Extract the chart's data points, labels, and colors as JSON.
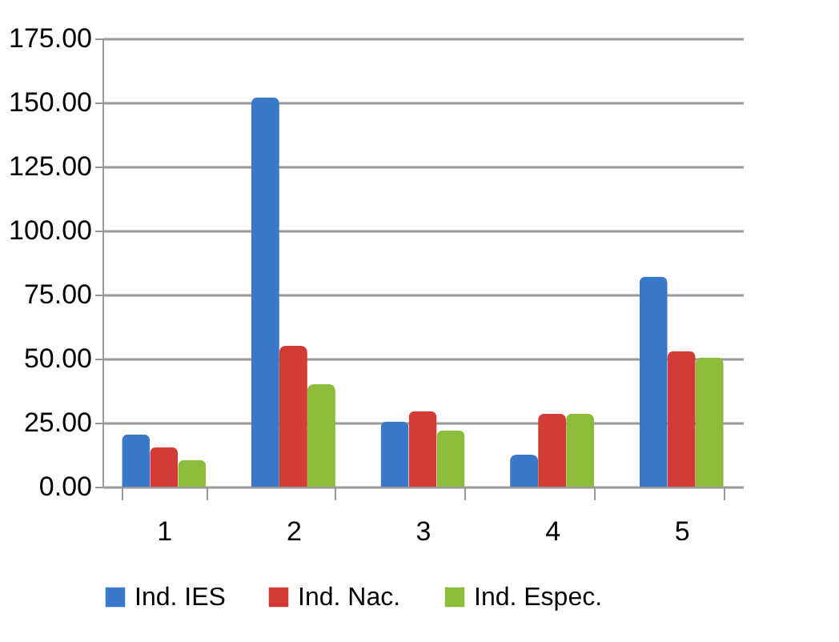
{
  "chart_data": {
    "type": "bar",
    "categories": [
      "1",
      "2",
      "3",
      "4",
      "5"
    ],
    "series": [
      {
        "name": "Ind. IES",
        "color": "#3a78c9",
        "values": [
          20.5,
          152,
          25.5,
          12.5,
          82
        ]
      },
      {
        "name": "Ind. Nac.",
        "color": "#d33b36",
        "values": [
          15.5,
          55,
          29.5,
          28.5,
          53
        ]
      },
      {
        "name": "Ind. Espec.",
        "color": "#8dbb3a",
        "values": [
          10.5,
          40,
          22,
          28.5,
          50.5
        ]
      }
    ],
    "ylim": [
      0,
      175
    ],
    "yticks": [
      {
        "value": 0,
        "label": "0.00"
      },
      {
        "value": 25,
        "label": "25.00"
      },
      {
        "value": 50,
        "label": "50.00"
      },
      {
        "value": 75,
        "label": "75.00"
      },
      {
        "value": 100,
        "label": "100.00"
      },
      {
        "value": 125,
        "label": "125.00"
      },
      {
        "value": 150,
        "label": "150.00"
      },
      {
        "value": 175,
        "label": "175.00"
      }
    ],
    "grid": "y",
    "legend": "bottom"
  }
}
